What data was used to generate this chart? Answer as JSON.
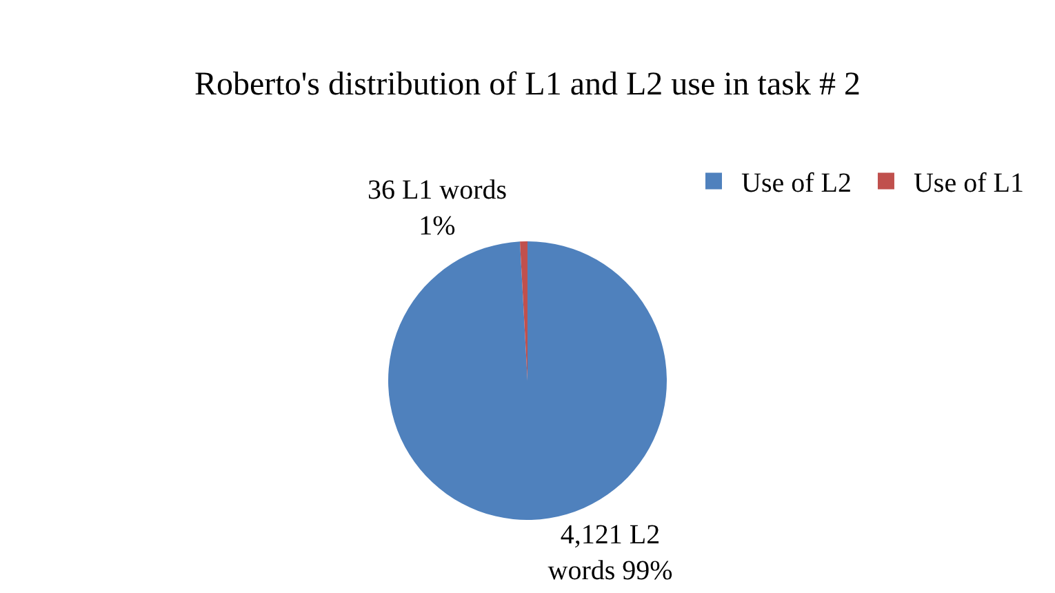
{
  "chart_data": {
    "type": "pie",
    "title": "Roberto's distribution of L1 and L2 use in task # 2",
    "categories": [
      "Use of L2",
      "Use of L1"
    ],
    "values": [
      4121,
      36
    ],
    "colors": [
      "#4f81bd",
      "#c0504d"
    ],
    "value_labels": [
      "4,121 L2\nwords 99%",
      "36 L1 words\n1%"
    ],
    "legend": "top right"
  }
}
